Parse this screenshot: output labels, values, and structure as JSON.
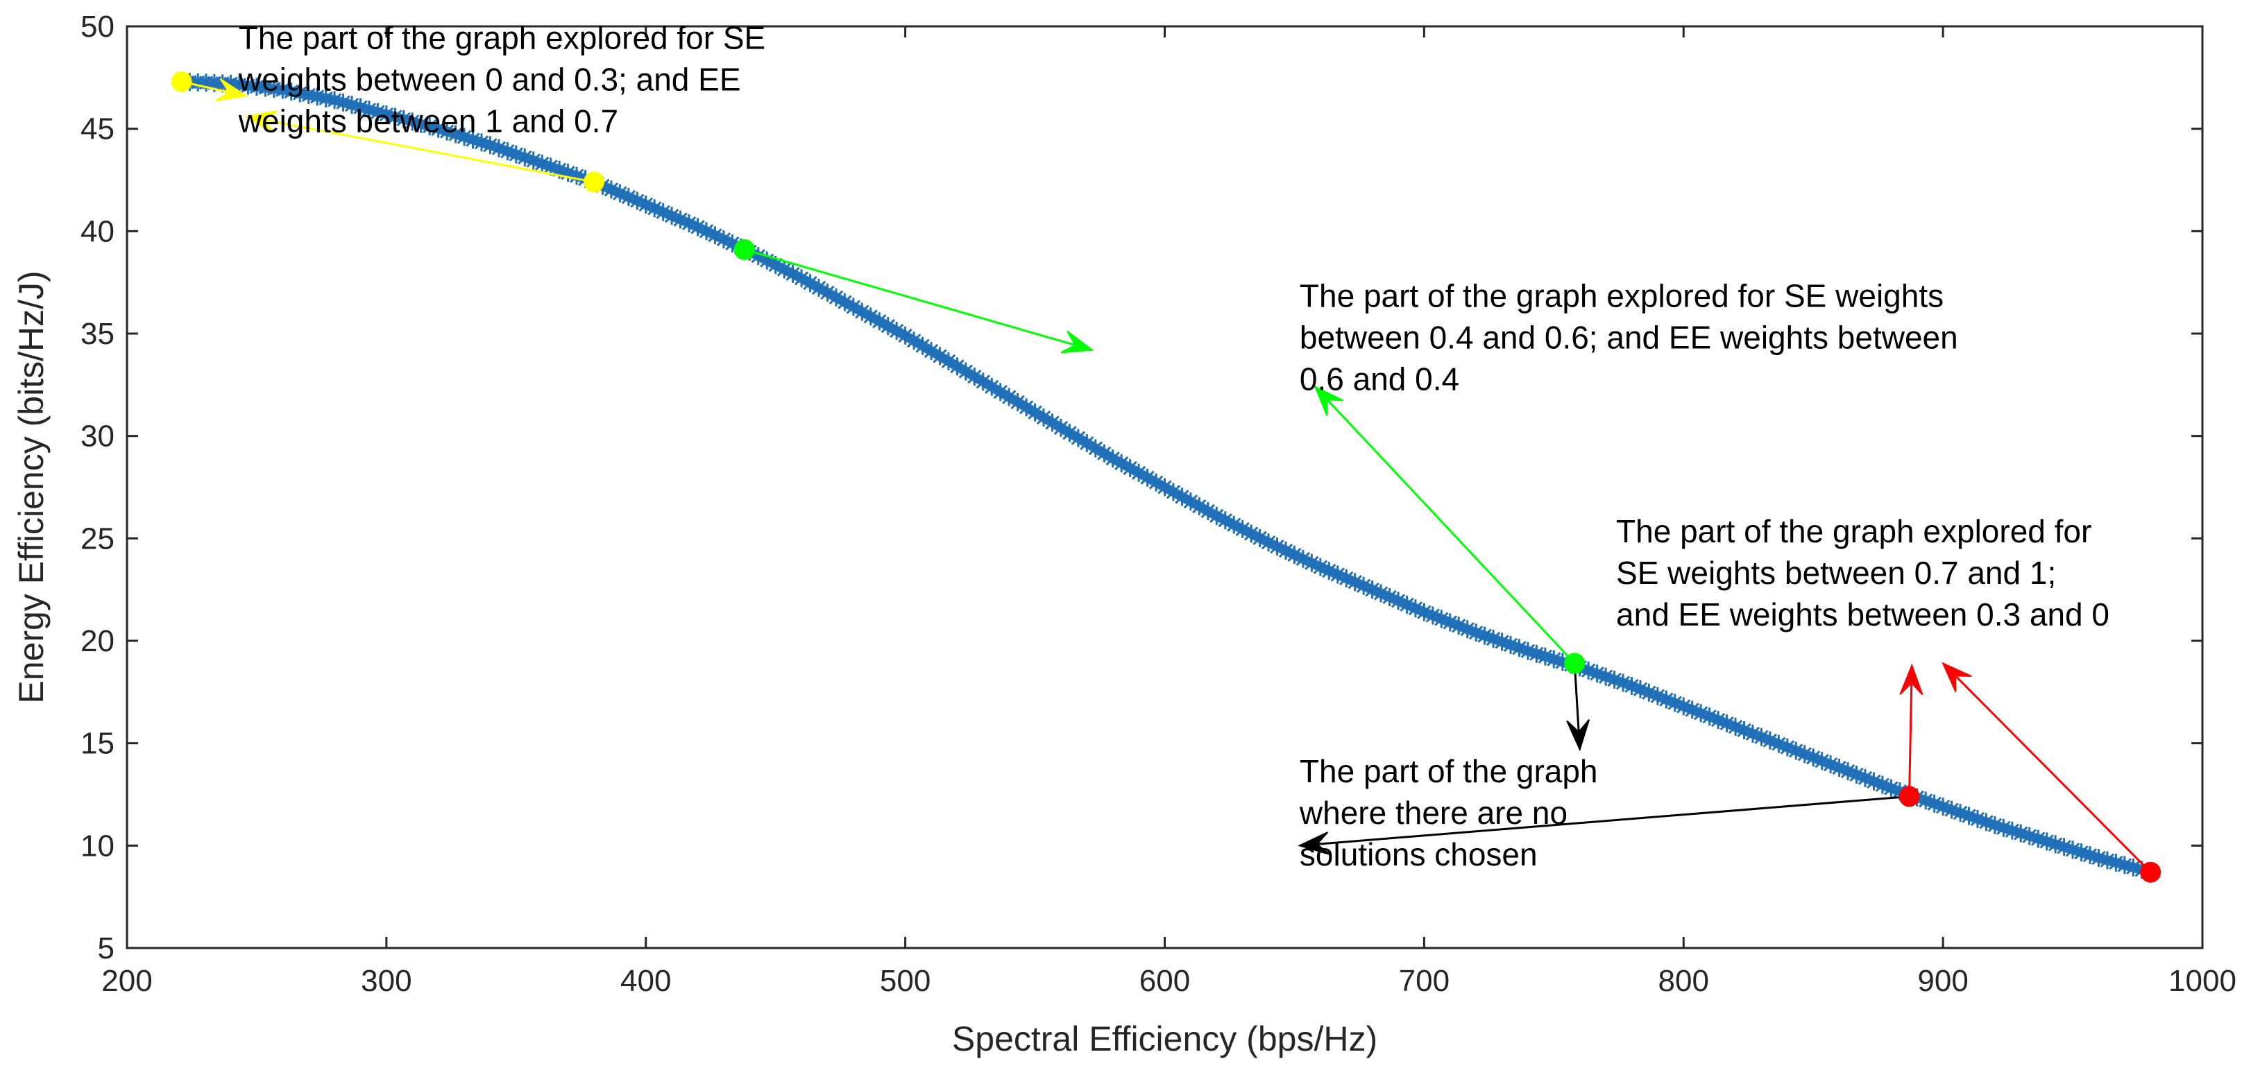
{
  "chart_data": {
    "type": "scatter",
    "xlabel": "Spectral Efficiency (bps/Hz)",
    "ylabel": "Energy Efficiency (bits/Hz/J)",
    "xlim": [
      200,
      1000
    ],
    "ylim": [
      5,
      50
    ],
    "x_ticks": [
      200,
      300,
      400,
      500,
      600,
      700,
      800,
      900,
      1000
    ],
    "y_ticks": [
      5,
      10,
      15,
      20,
      25,
      30,
      35,
      40,
      45,
      50
    ],
    "x_tick_labels": [
      "200",
      "300",
      "400",
      "500",
      "600",
      "700",
      "800",
      "900",
      "1000"
    ],
    "y_tick_labels": [
      "5",
      "10",
      "15",
      "20",
      "25",
      "30",
      "35",
      "40",
      "45",
      "50"
    ],
    "grid": false,
    "box": true,
    "series": [
      {
        "marker": "asterisk",
        "color": "#1f6fb8",
        "x": [
          221,
          240,
          260,
          280,
          300,
          320,
          340,
          360,
          380,
          400,
          420,
          440,
          460,
          480,
          500,
          520,
          540,
          560,
          580,
          600,
          620,
          640,
          660,
          680,
          700,
          720,
          740,
          760,
          780,
          800,
          820,
          840,
          860,
          880,
          900,
          920,
          940,
          960,
          980
        ],
        "y": [
          47.3,
          47.2,
          46.9,
          46.4,
          45.7,
          45.0,
          44.2,
          43.3,
          42.4,
          41.3,
          40.2,
          39.0,
          37.7,
          36.3,
          34.9,
          33.4,
          31.9,
          30.4,
          28.9,
          27.5,
          26.1,
          24.8,
          23.6,
          22.5,
          21.4,
          20.4,
          19.5,
          18.7,
          17.8,
          16.8,
          15.8,
          14.8,
          13.8,
          12.8,
          11.9,
          11.0,
          10.2,
          9.4,
          8.7
        ]
      }
    ],
    "highlight_points": [
      {
        "x": 221,
        "y": 47.3,
        "color": "#ffff00"
      },
      {
        "x": 380,
        "y": 42.4,
        "color": "#ffff00"
      },
      {
        "x": 438,
        "y": 39.1,
        "color": "#00ff00"
      },
      {
        "x": 758,
        "y": 18.9,
        "color": "#00ff00"
      },
      {
        "x": 887,
        "y": 12.4,
        "color": "#ff0000"
      },
      {
        "x": 980,
        "y": 8.7,
        "color": "#ff0000"
      }
    ],
    "annotations": [
      {
        "lines": [
          "The part of the graph explored for SE",
          "weights between 0 and 0.3; and EE",
          "weights between 1 and 0.7"
        ],
        "x": 243,
        "y": 48.9
      },
      {
        "lines": [
          "The part of the graph explored for SE weights",
          "between 0.4 and 0.6; and EE weights between",
          "0.6 and 0.4"
        ],
        "x": 652,
        "y": 36.3
      },
      {
        "lines": [
          "The part of the graph explored for",
          "SE weights between 0.7 and 1;",
          "and EE weights between 0.3 and 0"
        ],
        "x": 774,
        "y": 24.8
      },
      {
        "lines": [
          "The part of the graph",
          "where there are no",
          "solutions chosen"
        ],
        "x": 652,
        "y": 13.1
      }
    ],
    "arrows": [
      {
        "from": [
          221,
          47.3
        ],
        "to": [
          246,
          46.6
        ],
        "color": "#ffff00"
      },
      {
        "from": [
          380,
          42.4
        ],
        "to": [
          246,
          45.6
        ],
        "color": "#ffff00"
      },
      {
        "from": [
          438,
          39.1
        ],
        "to": [
          572,
          34.2
        ],
        "color": "#00ff00"
      },
      {
        "from": [
          758,
          18.9
        ],
        "to": [
          658,
          32.4
        ],
        "color": "#00ff00"
      },
      {
        "from": [
          758,
          18.9
        ],
        "to": [
          760,
          14.7
        ],
        "color": "#000000"
      },
      {
        "from": [
          887,
          12.4
        ],
        "to": [
          652,
          10.0
        ],
        "color": "#000000"
      },
      {
        "from": [
          887,
          12.4
        ],
        "to": [
          888,
          18.8
        ],
        "color": "#ff0000"
      },
      {
        "from": [
          980,
          8.7
        ],
        "to": [
          900,
          18.9
        ],
        "color": "#ff0000"
      }
    ]
  }
}
